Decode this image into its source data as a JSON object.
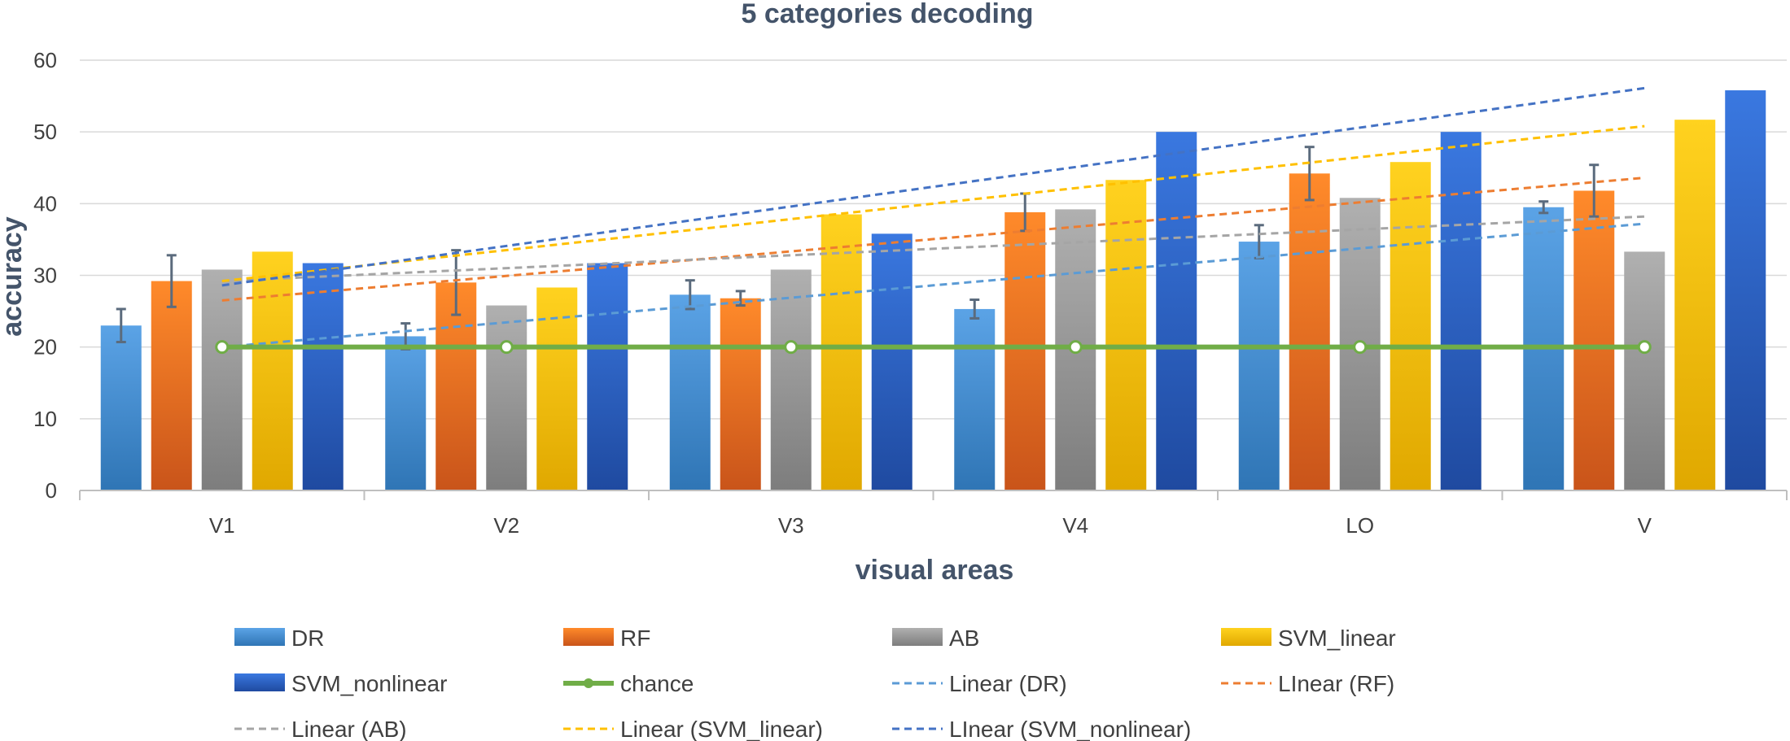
{
  "chart_data": {
    "type": "bar",
    "title": "5 categories decoding",
    "xlabel": "visual areas",
    "ylabel": "accuracy",
    "ylim": [
      0,
      60
    ],
    "yticks": [
      0,
      10,
      20,
      30,
      40,
      50,
      60
    ],
    "grid": true,
    "legend_position": "bottom",
    "categories": [
      "V1",
      "V2",
      "V3",
      "V4",
      "LO",
      "V"
    ],
    "series": [
      {
        "name": "DR",
        "color": "#3f8fd6",
        "color_light": "#5ba3e6",
        "color_dark": "#2f75b5",
        "values": [
          23,
          21.5,
          27.3,
          25.3,
          34.7,
          39.5
        ],
        "errors": [
          2.3,
          1.8,
          2.0,
          1.3,
          2.3,
          0.8
        ]
      },
      {
        "name": "RF",
        "color": "#f07520",
        "color_light": "#ff8a2a",
        "color_dark": "#c9541a",
        "values": [
          29.2,
          29.0,
          26.8,
          38.8,
          44.2,
          41.8
        ],
        "errors": [
          3.6,
          4.5,
          1.0,
          2.6,
          3.7,
          3.6
        ]
      },
      {
        "name": "AB",
        "color": "#9b9b9b",
        "color_light": "#b0b0b0",
        "color_dark": "#7d7d7d",
        "values": [
          30.8,
          25.8,
          30.8,
          39.2,
          40.8,
          33.3
        ],
        "errors": [
          0,
          0,
          0,
          0,
          0,
          0
        ]
      },
      {
        "name": "SVM_linear",
        "color": "#ffc000",
        "color_light": "#ffd21f",
        "color_dark": "#e0a800",
        "values": [
          33.3,
          28.3,
          38.5,
          43.3,
          45.8,
          51.7
        ],
        "errors": [
          0,
          0,
          0,
          0,
          0,
          0
        ]
      },
      {
        "name": "SVM_nonlinear",
        "color": "#2e63c8",
        "color_light": "#3a78e0",
        "color_dark": "#1f4aa0",
        "values": [
          31.7,
          31.7,
          35.8,
          50.0,
          50.0,
          55.8
        ],
        "errors": [
          0,
          0,
          0,
          0,
          0,
          0
        ]
      }
    ],
    "chance": {
      "name": "chance",
      "color": "#70ad47",
      "values": [
        20,
        20,
        20,
        20,
        20,
        20
      ]
    },
    "trendlines": [
      {
        "name": "Linear (DR)",
        "color": "#5b9bd5",
        "start": 20.0,
        "end": 37.2
      },
      {
        "name": "LInear (RF)",
        "color": "#ed7d31",
        "start": 26.5,
        "end": 43.6
      },
      {
        "name": "Linear (AB)",
        "color": "#a5a5a5",
        "start": 29.2,
        "end": 38.2
      },
      {
        "name": "Linear (SVM_linear)",
        "color": "#ffc000",
        "start": 29.2,
        "end": 50.8
      },
      {
        "name": "LInear (SVM_nonlinear)",
        "color": "#4472c4",
        "start": 28.6,
        "end": 56.1
      }
    ],
    "legend": [
      {
        "label": "DR",
        "kind": "bar",
        "color": "#3f8fd6"
      },
      {
        "label": "RF",
        "kind": "bar",
        "color": "#f07520"
      },
      {
        "label": "AB",
        "kind": "bar",
        "color": "#9b9b9b"
      },
      {
        "label": "SVM_linear",
        "kind": "bar",
        "color": "#ffc000"
      },
      {
        "label": "SVM_nonlinear",
        "kind": "bar",
        "color": "#2e63c8"
      },
      {
        "label": "chance",
        "kind": "marker-line",
        "color": "#70ad47"
      },
      {
        "label": "Linear (DR)",
        "kind": "dash",
        "color": "#5b9bd5"
      },
      {
        "label": "LInear (RF)",
        "kind": "dash",
        "color": "#ed7d31"
      },
      {
        "label": "Linear (AB)",
        "kind": "dash",
        "color": "#a5a5a5"
      },
      {
        "label": "Linear (SVM_linear)",
        "kind": "dash",
        "color": "#ffc000"
      },
      {
        "label": "LInear (SVM_nonlinear)",
        "kind": "dash",
        "color": "#4472c4"
      }
    ]
  }
}
